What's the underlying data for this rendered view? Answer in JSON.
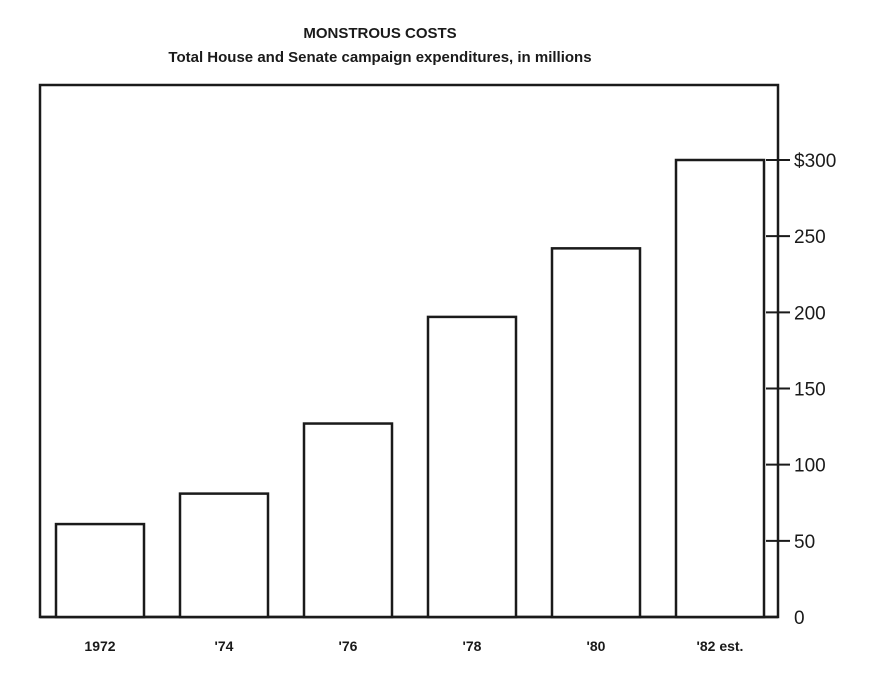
{
  "chart_data": {
    "type": "bar",
    "title": "MONSTROUS COSTS",
    "subtitle": "Total House and Senate campaign expenditures, in millions",
    "categories": [
      "1972",
      "'74",
      "'76",
      "'78",
      "'80",
      "'82 est."
    ],
    "values": [
      61,
      81,
      127,
      197,
      242,
      300
    ],
    "ylim": [
      0,
      300
    ],
    "yticks": [
      0,
      50,
      100,
      150,
      200,
      250,
      300
    ],
    "ytick_labels": [
      "0",
      "50",
      "100",
      "150",
      "200",
      "250",
      "$300"
    ],
    "y_axis_position": "right",
    "grid": false,
    "xlabel": "",
    "ylabel": ""
  }
}
